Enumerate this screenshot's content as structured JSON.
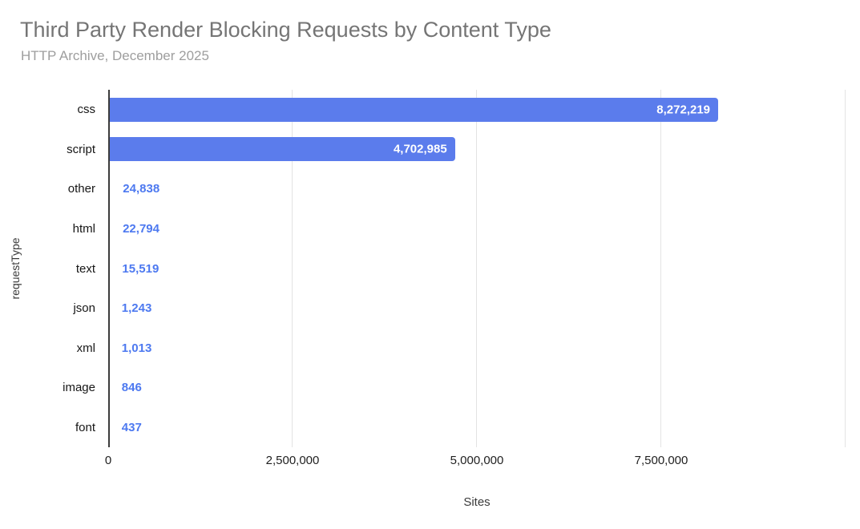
{
  "chart_data": {
    "type": "bar",
    "orientation": "horizontal",
    "title": "Third Party Render Blocking Requests by Content Type",
    "subtitle": "HTTP Archive, December 2025",
    "xlabel": "Sites",
    "ylabel": "requestType",
    "xlim": [
      0,
      10000000
    ],
    "grid": true,
    "legend": "none",
    "x_ticks": [
      {
        "value": 0,
        "label": "0"
      },
      {
        "value": 2500000,
        "label": "2,500,000"
      },
      {
        "value": 5000000,
        "label": "5,000,000"
      },
      {
        "value": 7500000,
        "label": "7,500,000"
      },
      {
        "value": 10000000,
        "label": ""
      }
    ],
    "categories": [
      "css",
      "script",
      "other",
      "html",
      "text",
      "json",
      "xml",
      "image",
      "font"
    ],
    "values": [
      8272219,
      4702985,
      24838,
      22794,
      15519,
      1243,
      1013,
      846,
      437
    ],
    "value_labels": [
      "8,272,219",
      "4,702,985",
      "24,838",
      "22,794",
      "15,519",
      "1,243",
      "1,013",
      "846",
      "437"
    ],
    "colors": {
      "bar": "#5b7cec",
      "value_label_inside": "#ffffff",
      "value_label_outside": "#4d79f0",
      "title": "#757575",
      "subtitle": "#9e9e9e",
      "axis_line": "#3c3c3c",
      "gridline": "#e3e3e3",
      "category_label": "#161616",
      "tick_label": "#1f1f1f",
      "axis_title": "#3a3a3a"
    }
  }
}
